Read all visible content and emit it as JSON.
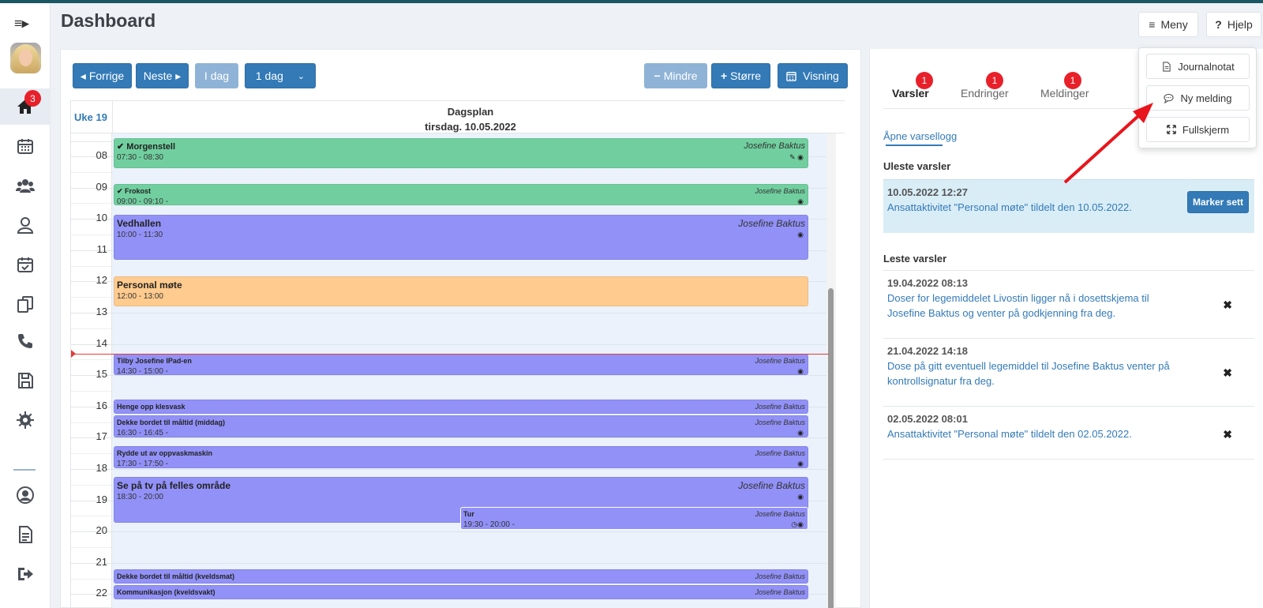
{
  "page": {
    "title": "Dashboard"
  },
  "sidebar": {
    "toggle": "≡▸",
    "home_badge": "3",
    "items": [
      {
        "icon": "home-icon"
      },
      {
        "icon": "calendar-icon"
      },
      {
        "icon": "users-icon"
      },
      {
        "icon": "user-icon"
      },
      {
        "icon": "calendar-check-icon"
      },
      {
        "icon": "documents-icon"
      },
      {
        "icon": "phone-icon"
      },
      {
        "icon": "save-icon"
      },
      {
        "icon": "gear-icon"
      },
      {
        "icon": "profile-icon"
      },
      {
        "icon": "report-icon"
      },
      {
        "icon": "logout-icon"
      }
    ]
  },
  "topbar": {
    "menu_label": "Meny",
    "help_label": "Hjelp"
  },
  "toolbar": {
    "prev": "Forrige",
    "next": "Neste",
    "today": "I dag",
    "range": "1 dag",
    "smaller": "Mindre",
    "bigger": "Større",
    "view": "Visning"
  },
  "calendar": {
    "week": "Uke 19",
    "title": "Dagsplan",
    "date": "tirsdag. 10.05.2022",
    "hours": [
      "08",
      "09",
      "10",
      "11",
      "12",
      "13",
      "14",
      "15",
      "16",
      "17",
      "18",
      "19",
      "20",
      "21",
      "22"
    ],
    "events": [
      {
        "title": "Morgenstell",
        "time": "07:30 - 08:30",
        "who": "Josefine Baktus"
      },
      {
        "title": "Frokost",
        "time": "09:00 - 09:10  -",
        "who": "Josefine Baktus"
      },
      {
        "title": "Vedhallen",
        "time": "10:00 - 11:30",
        "who": "Josefine Baktus"
      },
      {
        "title": "Personal møte",
        "time": "12:00 - 13:00",
        "who": ""
      },
      {
        "title": "Tilby Josefine IPad-en",
        "time": "14:30 - 15:00  -",
        "who": "Josefine Baktus"
      },
      {
        "title": "Henge opp klesvask",
        "time": "",
        "who": "Josefine Baktus"
      },
      {
        "title": "Dekke bordet til måltid (middag)",
        "time": "16:30 - 16:45  -",
        "who": "Josefine Baktus"
      },
      {
        "title": "Rydde ut av oppvaskmaskin",
        "time": "17:30 - 17:50  -",
        "who": "Josefine Baktus"
      },
      {
        "title": "Se på tv på felles område",
        "time": "18:30 - 20:00",
        "who": "Josefine Baktus"
      },
      {
        "title": "Tur",
        "time": "19:30 - 20:00  -",
        "who": "Josefine Baktus"
      },
      {
        "title": "Dekke bordet til måltid (kveldsmat)",
        "time": "",
        "who": "Josefine Baktus"
      },
      {
        "title": "Kommunikasjon (kveldsvakt)",
        "time": "",
        "who": "Josefine Baktus"
      }
    ]
  },
  "notifications": {
    "tabs": [
      {
        "label": "Varsler",
        "badge": "1"
      },
      {
        "label": "Endringer",
        "badge": "1"
      },
      {
        "label": "Meldinger",
        "badge": "1"
      }
    ],
    "open_log": "Åpne varsellogg",
    "unread_title": "Uleste varsler",
    "unread": {
      "date": "10.05.2022 12:27",
      "text": "Ansattaktivitet \"Personal møte\" tildelt den 10.05.2022.",
      "button": "Marker sett"
    },
    "read_title": "Leste varsler",
    "read": [
      {
        "date": "19.04.2022 08:13",
        "text": "Doser for legemiddelet Livostin ligger nå i dosettskjema til Josefine Baktus og venter på godkjenning fra deg."
      },
      {
        "date": "21.04.2022 14:18",
        "text": "Dose på gitt eventuell legemiddel til Josefine Baktus venter på kontrollsignatur fra deg."
      },
      {
        "date": "02.05.2022 08:01",
        "text": "Ansattaktivitet \"Personal møte\" tildelt den 02.05.2022."
      }
    ]
  },
  "menu": {
    "items": [
      {
        "label": "Journalnotat",
        "icon": "document-icon"
      },
      {
        "label": "Ny melding",
        "icon": "chat-icon"
      },
      {
        "label": "Fullskjerm",
        "icon": "expand-icon"
      }
    ]
  },
  "colors": {
    "accent": "#337ab7",
    "event_green": "#71cf9f",
    "event_purple": "#9191f7",
    "event_orange": "#ffcb8e",
    "badge_red": "#e8202a",
    "arrow_red": "#e8151c"
  }
}
